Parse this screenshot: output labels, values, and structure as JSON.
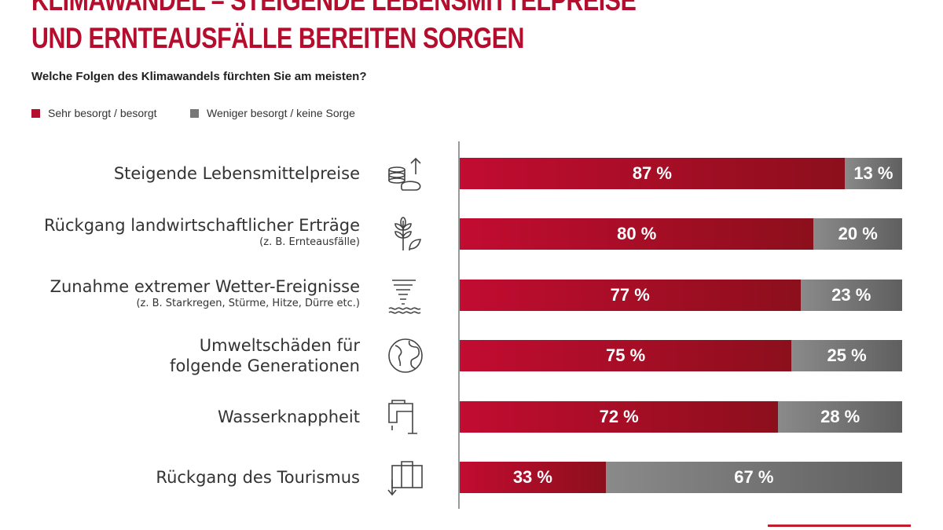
{
  "title_lines": [
    "KLIMAWANDEL – STEIGENDE LEBENSMITTELPREISE",
    "UND ERNTEAUSFÄLLE BEREITEN SORGEN"
  ],
  "question": "Welche Folgen des Klimawandels fürchten Sie am meisten?",
  "chart_data": {
    "type": "bar",
    "orientation": "horizontal-stacked",
    "xlim": [
      0,
      100
    ],
    "legend_position": "top-left",
    "categories": [
      {
        "label": "Steigende Lebensmittelpreise",
        "sub": "",
        "icon": "food-price-icon"
      },
      {
        "label": "Rückgang landwirtschaftlicher Erträge",
        "sub": "(z. B. Ernteausfälle)",
        "icon": "plant-icon"
      },
      {
        "label": "Zunahme extremer Wetter-Ereignisse",
        "sub": "(z. B. Starkregen, Stürme, Hitze, Dürre etc.)",
        "icon": "tornado-icon"
      },
      {
        "label": "Umweltschäden für\nfolgende Generationen",
        "sub": "",
        "icon": "globe-icon"
      },
      {
        "label": "Wasserknappheit",
        "sub": "",
        "icon": "faucet-icon"
      },
      {
        "label": "Rückgang des Tourismus",
        "sub": "",
        "icon": "suitcase-down-icon"
      }
    ],
    "series": [
      {
        "name": "Sehr besorgt / besorgt",
        "color": "#b50d2e",
        "values": [
          87,
          80,
          77,
          75,
          72,
          33
        ]
      },
      {
        "name": "Weniger besorgt / keine Sorge",
        "color": "#777777",
        "values": [
          13,
          20,
          23,
          25,
          28,
          67
        ]
      }
    ],
    "value_suffix": " %"
  }
}
